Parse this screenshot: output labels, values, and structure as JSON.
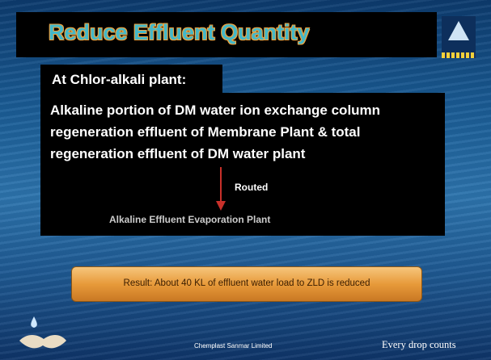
{
  "title": "Reduce Effluent Quantity",
  "subtitle": "At Chlor-alkali plant:",
  "body": "Alkaline portion of DM water ion exchange column regeneration effluent of Membrane Plant & total regeneration effluent of DM water plant",
  "arrow_label": "Routed",
  "destination": "Alkaline Effluent Evaporation Plant",
  "result": "Result: About 40  KL of  effluent water load to ZLD is reduced",
  "footer": {
    "company": "Chemplast Sanmar Limited",
    "tagline": "Every drop counts"
  }
}
